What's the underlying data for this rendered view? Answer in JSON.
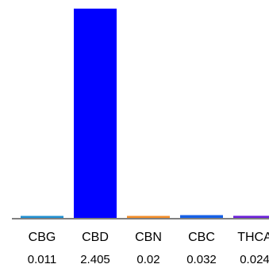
{
  "chart_data": {
    "type": "bar",
    "categories": [
      "CBG",
      "CBD",
      "CBN",
      "CBC",
      "THCA"
    ],
    "values": [
      0.011,
      2.405,
      0.02,
      0.032,
      0.024
    ],
    "value_labels": [
      "0.011",
      "2.405",
      "0.02",
      "0.032",
      "0.024"
    ],
    "bar_colors": [
      "#1f8fd0",
      "#0000ff",
      "#f28c28",
      "#1560e6",
      "#6a1fd8"
    ],
    "axis_color": "#000000",
    "ylim": [
      0,
      2.44
    ],
    "grid": false,
    "legend": "none"
  }
}
